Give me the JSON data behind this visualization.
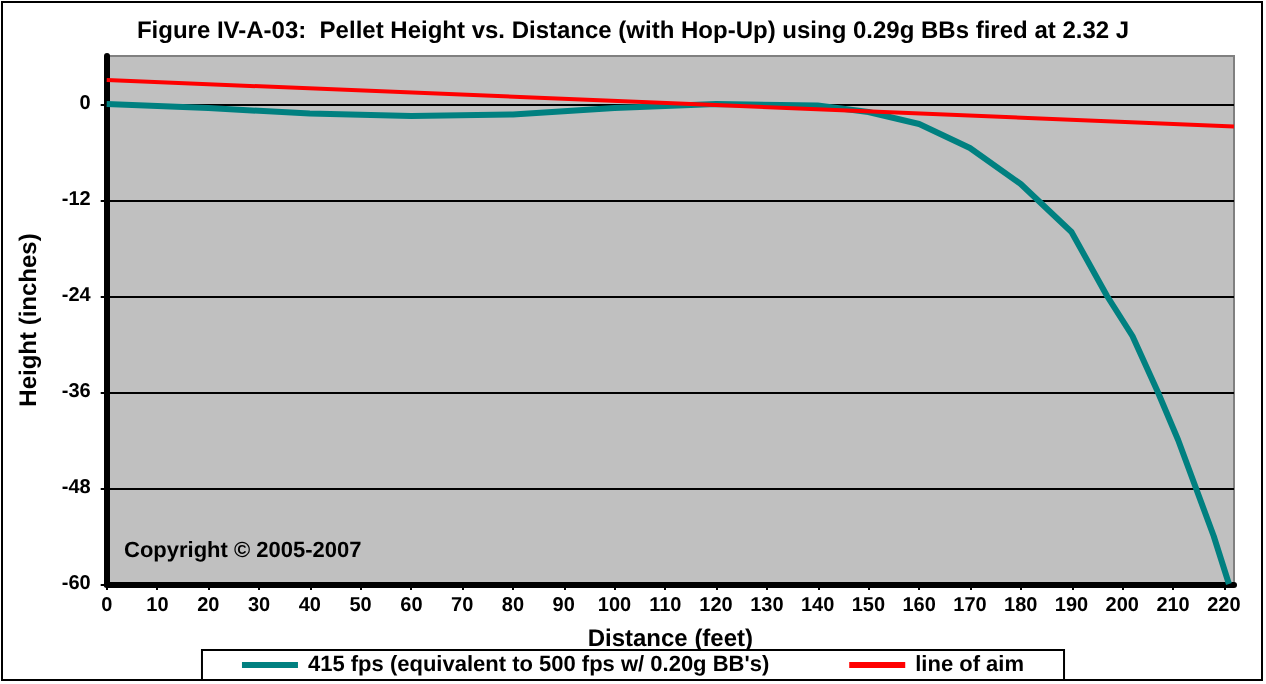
{
  "chart_data": {
    "type": "line",
    "title": "Figure IV-A-03:  Pellet Height vs. Distance (with Hop-Up) using 0.29g BBs fired at 2.32 J",
    "xlabel": "Distance (feet)",
    "ylabel": "Height (inches)",
    "annotations": [
      "Copyright © 2005-2007"
    ],
    "xlim": [
      0,
      222
    ],
    "xticks": [
      0,
      10,
      20,
      30,
      40,
      50,
      60,
      70,
      80,
      90,
      100,
      110,
      120,
      130,
      140,
      150,
      160,
      170,
      180,
      190,
      200,
      210,
      220
    ],
    "ylim": [
      -60,
      6
    ],
    "yticks": [
      -60,
      -48,
      -36,
      -24,
      -12,
      0
    ],
    "grid": "y",
    "legend": "bottom",
    "marker": "none",
    "line_style": "solid",
    "series": [
      {
        "name": "415 fps (equivalent to 500 fps w/ 0.20g BB's)",
        "color": "#008080",
        "x": [
          0,
          20,
          40,
          60,
          80,
          100,
          120,
          140,
          150,
          160,
          170,
          180,
          190,
          197,
          202,
          207,
          211,
          214.5,
          218,
          221
        ],
        "values": [
          0,
          -0.5,
          -1.2,
          -1.5,
          -1.3,
          -0.5,
          0,
          -0.2,
          -1,
          -2.5,
          -5.5,
          -10,
          -16,
          -24,
          -29,
          -36,
          -42,
          -48,
          -54,
          -60
        ]
      },
      {
        "name": "line of aim",
        "color": "#ff0000",
        "x": [
          0,
          222
        ],
        "values": [
          3,
          -2.8
        ]
      }
    ]
  }
}
